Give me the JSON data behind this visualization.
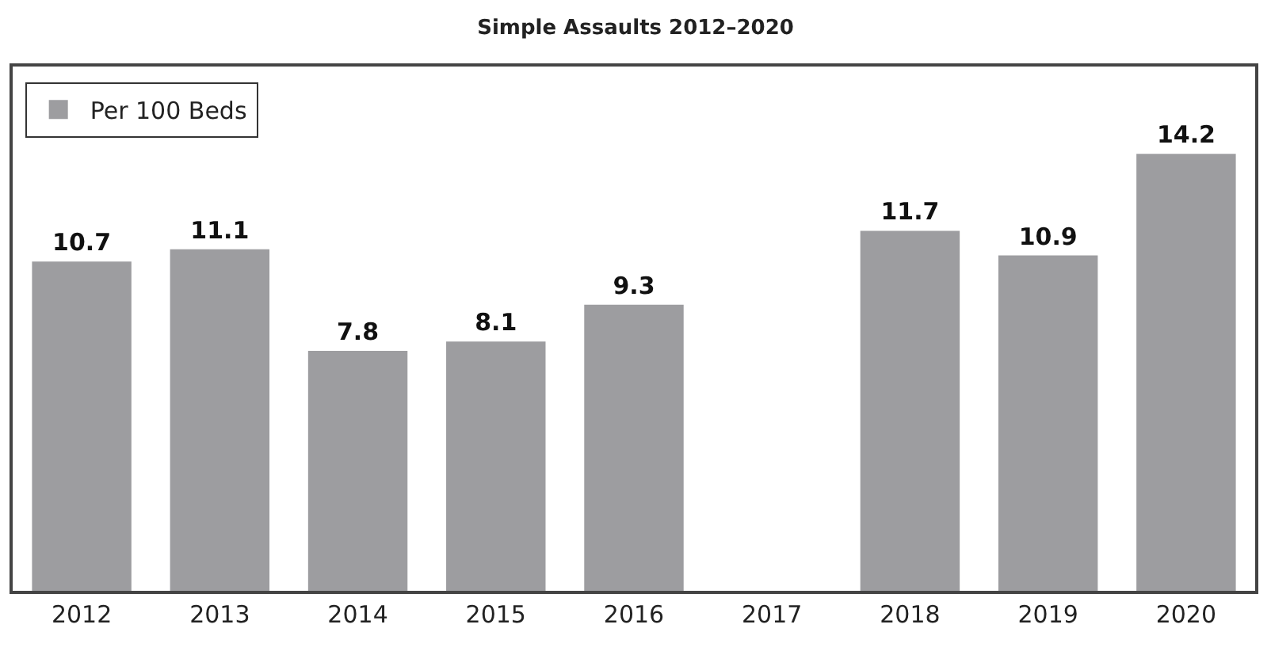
{
  "chart_data": {
    "type": "bar",
    "title": "Simple Assaults 2012–2020",
    "categories": [
      "2012",
      "2013",
      "2014",
      "2015",
      "2016",
      "2017",
      "2018",
      "2019",
      "2020"
    ],
    "series": [
      {
        "name": "Per 100 Beds",
        "color": "#9d9da0",
        "values": [
          10.7,
          11.1,
          7.8,
          8.1,
          9.3,
          null,
          11.7,
          10.9,
          14.2
        ]
      }
    ],
    "data_labels": true,
    "legend": "top left"
  }
}
